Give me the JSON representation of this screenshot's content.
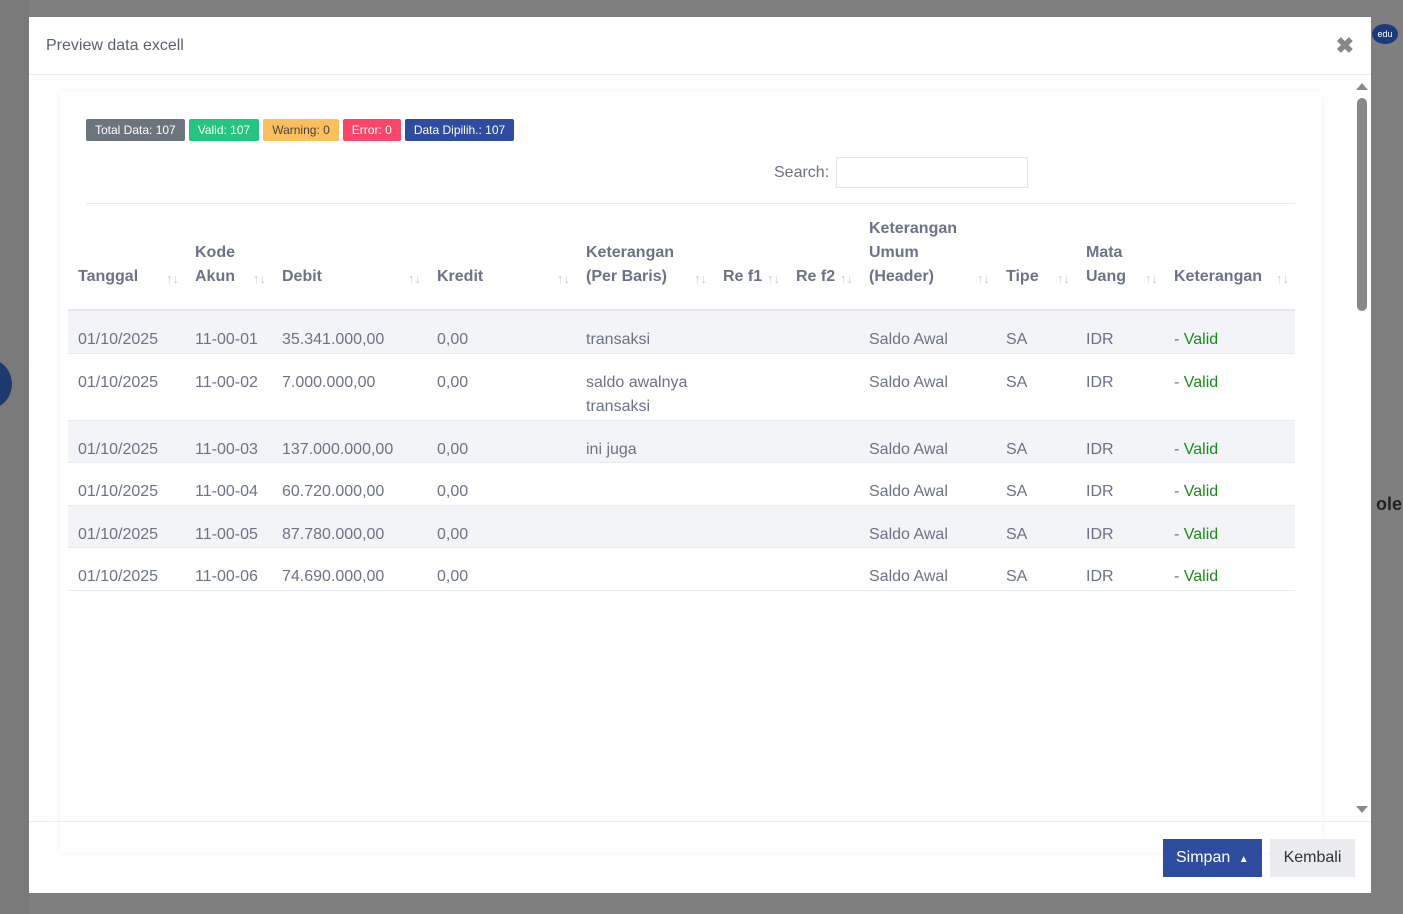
{
  "modal": {
    "title": "Preview data excell"
  },
  "badges": [
    {
      "label": "Total Data: 107",
      "color": "#6c757d"
    },
    {
      "label": "Valid: 107",
      "color": "#22c67e"
    },
    {
      "label": "Warning: 0",
      "color": "#fdbe5c"
    },
    {
      "label": "Error: 0",
      "color": "#fd4569"
    },
    {
      "label": "Data Dipilih.: 107",
      "color": "#2f4da0"
    }
  ],
  "search": {
    "label": "Search:",
    "value": ""
  },
  "columns": [
    "Tanggal",
    "Kode Akun",
    "Debit",
    "Kredit",
    "Keterangan (Per Baris)",
    "Re f1",
    "Re f2",
    "Keterangan Umum (Header)",
    "Tipe",
    "Mata Uang",
    "Keterangan"
  ],
  "rows": [
    [
      "01/10/2025",
      "11-00-01",
      "35.341.000,00",
      "0,00",
      "transaksi",
      "",
      "",
      "Saldo Awal",
      "SA",
      "IDR",
      "- Valid"
    ],
    [
      "01/10/2025",
      "11-00-02",
      "7.000.000,00",
      "0,00",
      "saldo awalnya transaksi",
      "",
      "",
      "Saldo Awal",
      "SA",
      "IDR",
      "- Valid"
    ],
    [
      "01/10/2025",
      "11-00-03",
      "137.000.000,00",
      "0,00",
      "ini juga",
      "",
      "",
      "Saldo Awal",
      "SA",
      "IDR",
      "- Valid"
    ],
    [
      "01/10/2025",
      "11-00-04",
      "60.720.000,00",
      "0,00",
      "",
      "",
      "",
      "Saldo Awal",
      "SA",
      "IDR",
      "- Valid"
    ],
    [
      "01/10/2025",
      "11-00-05",
      "87.780.000,00",
      "0,00",
      "",
      "",
      "",
      "Saldo Awal",
      "SA",
      "IDR",
      "- Valid"
    ],
    [
      "01/10/2025",
      "11-00-06",
      "74.690.000,00",
      "0,00",
      "",
      "",
      "",
      "Saldo Awal",
      "SA",
      "IDR",
      "- Valid"
    ]
  ],
  "footer": {
    "save": "Simpan",
    "back": "Kembali"
  },
  "background": {
    "logo": "edu",
    "side_text": "ole"
  }
}
